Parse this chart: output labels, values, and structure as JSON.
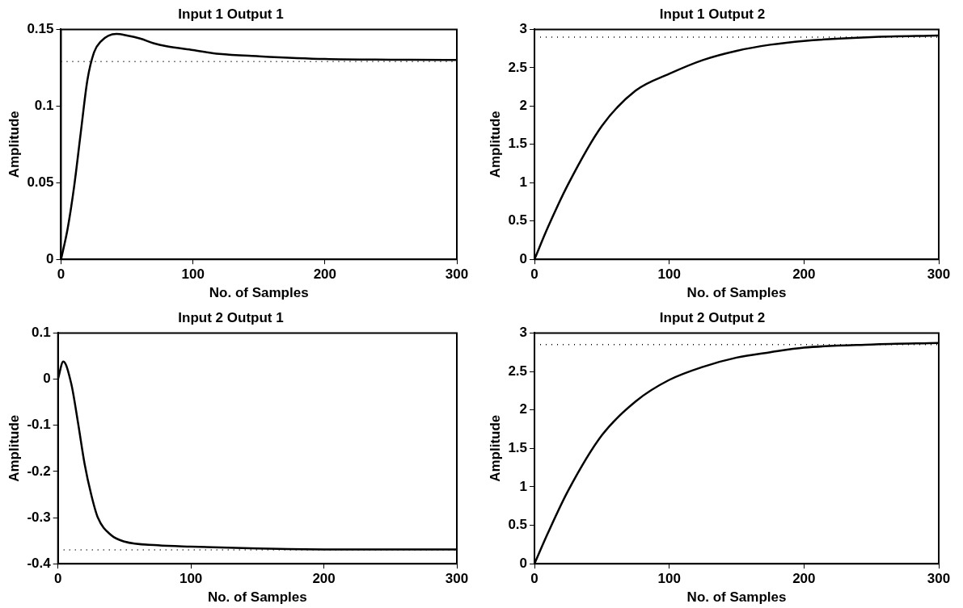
{
  "chart_data": [
    {
      "type": "line",
      "title": "Input 1 Output 1",
      "xlabel": "No. of Samples",
      "ylabel": "Amplitude",
      "xlim": [
        0,
        300
      ],
      "xticks": [
        0,
        100,
        200,
        300
      ],
      "ylim": [
        0,
        0.15
      ],
      "yticks": [
        0,
        0.05,
        0.1,
        0.15
      ],
      "grid": false,
      "legend": false,
      "marker": "none",
      "line_style": "solid",
      "series": [
        {
          "color": "#000000",
          "x": [
            0,
            5,
            10,
            15,
            20,
            25,
            30,
            42,
            50,
            60,
            70,
            80,
            100,
            120,
            150,
            200,
            250,
            300
          ],
          "values": [
            0,
            0.02,
            0.048,
            0.083,
            0.117,
            0.135,
            0.142,
            0.147,
            0.146,
            0.144,
            0.141,
            0.139,
            0.1365,
            0.134,
            0.1325,
            0.1307,
            0.1302,
            0.13
          ]
        }
      ],
      "ref_lines": [
        {
          "axis": "y",
          "value": 0.129,
          "color": "#000000",
          "line_style": "dotted"
        }
      ]
    },
    {
      "type": "line",
      "title": "Input 1 Output 2",
      "xlabel": "No. of Samples",
      "ylabel": "Amplitude",
      "xlim": [
        0,
        300
      ],
      "xticks": [
        0,
        100,
        200,
        300
      ],
      "ylim": [
        0,
        3
      ],
      "yticks": [
        0,
        0.5,
        1,
        1.5,
        2,
        2.5,
        3
      ],
      "grid": false,
      "legend": false,
      "marker": "none",
      "line_style": "solid",
      "series": [
        {
          "color": "#000000",
          "x": [
            0,
            10,
            25,
            50,
            75,
            100,
            125,
            150,
            175,
            200,
            250,
            300
          ],
          "values": [
            0,
            0.42,
            0.98,
            1.74,
            2.2,
            2.42,
            2.6,
            2.72,
            2.8,
            2.85,
            2.9,
            2.92
          ]
        }
      ],
      "ref_lines": [
        {
          "axis": "y",
          "value": 2.9,
          "color": "#000000",
          "line_style": "dotted"
        }
      ]
    },
    {
      "type": "line",
      "title": "Input 2 Output 1",
      "xlabel": "No. of Samples",
      "ylabel": "Amplitude",
      "xlim": [
        0,
        300
      ],
      "xticks": [
        0,
        100,
        200,
        300
      ],
      "ylim": [
        -0.4,
        0.1
      ],
      "yticks": [
        -0.4,
        -0.3,
        -0.2,
        -0.1,
        0,
        0.1
      ],
      "grid": false,
      "legend": false,
      "marker": "none",
      "line_style": "solid",
      "series": [
        {
          "color": "#000000",
          "x": [
            0,
            4,
            10,
            15,
            20,
            25,
            30,
            40,
            50,
            75,
            100,
            150,
            200,
            300
          ],
          "values": [
            0,
            0.038,
            -0.01,
            -0.093,
            -0.183,
            -0.25,
            -0.3,
            -0.338,
            -0.352,
            -0.36,
            -0.363,
            -0.367,
            -0.369,
            -0.369
          ]
        }
      ],
      "ref_lines": [
        {
          "axis": "y",
          "value": -0.37,
          "color": "#000000",
          "line_style": "dotted"
        }
      ]
    },
    {
      "type": "line",
      "title": "Input 2 Output 2",
      "xlabel": "No. of Samples",
      "ylabel": "Amplitude",
      "xlim": [
        0,
        300
      ],
      "xticks": [
        0,
        100,
        200,
        300
      ],
      "ylim": [
        0,
        3
      ],
      "yticks": [
        0,
        0.5,
        1,
        1.5,
        2,
        2.5,
        3
      ],
      "grid": false,
      "legend": false,
      "marker": "none",
      "line_style": "solid",
      "series": [
        {
          "color": "#000000",
          "x": [
            0,
            10,
            25,
            50,
            75,
            100,
            125,
            150,
            175,
            200,
            250,
            300
          ],
          "values": [
            0,
            0.4,
            0.95,
            1.67,
            2.11,
            2.39,
            2.56,
            2.68,
            2.75,
            2.81,
            2.85,
            2.87
          ]
        }
      ],
      "ref_lines": [
        {
          "axis": "y",
          "value": 2.85,
          "color": "#000000",
          "line_style": "dotted"
        }
      ]
    }
  ]
}
